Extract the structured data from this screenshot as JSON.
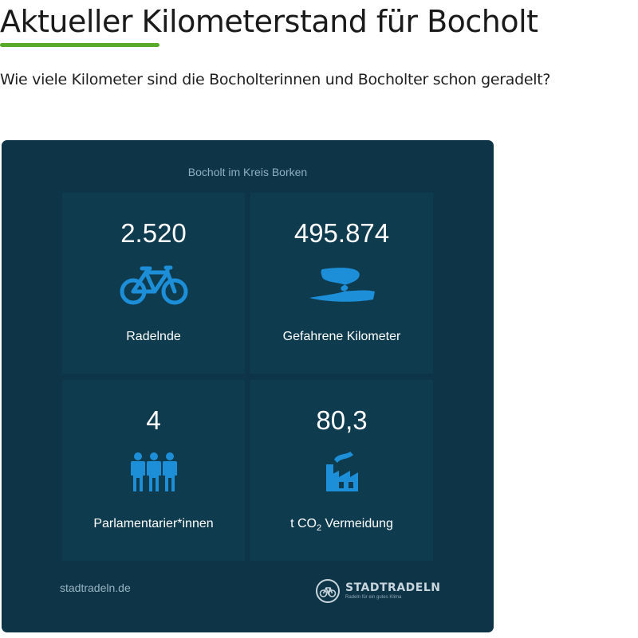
{
  "page": {
    "title": "Aktueller Kilometerstand für Bocholt",
    "subtitle": "Wie viele Kilometer sind die Bocholterinnen und Bocholter schon geradelt?"
  },
  "colors": {
    "accent_green": "#5aaa2a",
    "widget_background": "#0d3447",
    "tile_background": "#0f3b4f",
    "icon_blue": "#1d8fd8"
  },
  "widget": {
    "region": "Bocholt im Kreis Borken",
    "stats": [
      {
        "value": "2.520",
        "label": "Radelnde",
        "icon": "bicycle-icon"
      },
      {
        "value": "495.874",
        "label": "Gefahrene Kilometer",
        "icon": "road-icon"
      },
      {
        "value": "4",
        "label": "Parlamentarier*innen",
        "icon": "people-icon"
      },
      {
        "value": "80,3",
        "label_prefix": "t CO",
        "label_sub": "2",
        "label_suffix": " Vermeidung",
        "icon": "factory-icon"
      }
    ],
    "source_link": "stadtradeln.de",
    "brand": {
      "name": "STADTRADELN",
      "tagline": "Radeln für ein gutes Klima",
      "icon": "stadtradeln-logo-icon"
    }
  }
}
